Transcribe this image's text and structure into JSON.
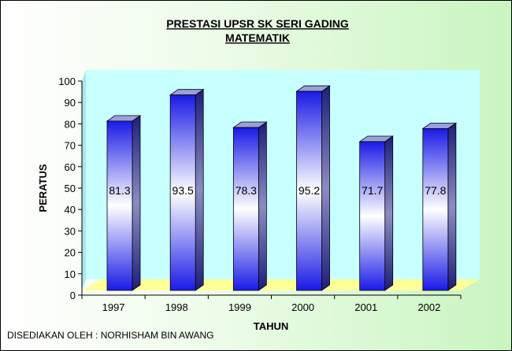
{
  "chart_data": {
    "type": "bar",
    "title": "PRESTASI UPSR SK SERI GADING",
    "subtitle": "MATEMATIK",
    "xlabel": "TAHUN",
    "ylabel": "PERATUS",
    "categories": [
      "1997",
      "1998",
      "1999",
      "2000",
      "2001",
      "2002"
    ],
    "values": [
      81.3,
      93.5,
      78.3,
      95.2,
      71.7,
      77.8
    ],
    "data_labels": [
      "81.3",
      "93.5",
      "78.3",
      "95.2",
      "71.7",
      "77.8"
    ],
    "ylim": [
      0,
      100
    ],
    "yticks": [
      "0",
      "10",
      "20",
      "30",
      "40",
      "50",
      "60",
      "70",
      "80",
      "90",
      "100"
    ],
    "grid": false,
    "legend": "none",
    "style": "3d-column",
    "colors": {
      "bar_dark": "#1a1ae6",
      "bar_light": "#ffffff",
      "bar_side": "#1e1e7a",
      "bar_top": "#9aa0d8",
      "back_wall": "#c8ffff",
      "floor": "#ffff99"
    }
  },
  "footer": {
    "credit": "DISEDIAKAN OLEH : NORHISHAM BIN AWANG"
  }
}
